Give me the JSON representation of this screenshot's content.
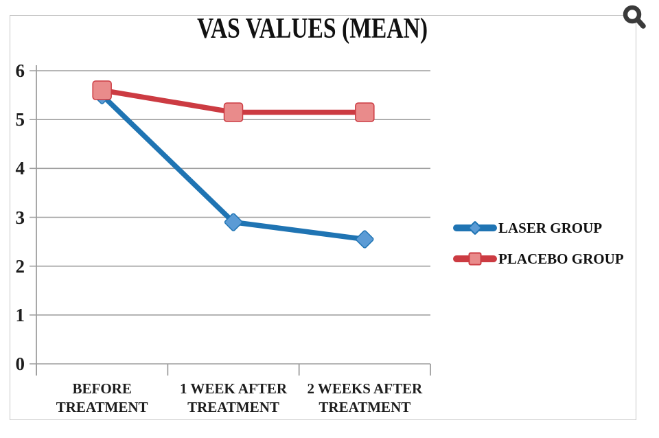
{
  "icons": {
    "zoom": "magnifier-icon"
  },
  "colors": {
    "grid": "#9e9e9e",
    "border": "#c6c6c6",
    "text": "#1d1d1d",
    "icon": "#3a3a3a"
  },
  "chart_data": {
    "type": "line",
    "title": "VAS VALUES (MEAN)",
    "categories": [
      "BEFORE TREATMENT",
      "1 WEEK AFTER TREATMENT",
      "2 WEEKS AFTER TREATMENT"
    ],
    "categories_lines": [
      [
        "BEFORE",
        "TREATMENT"
      ],
      [
        "1 WEEK AFTER",
        "TREATMENT"
      ],
      [
        "2 WEEKS AFTER",
        "TREATMENT"
      ]
    ],
    "series": [
      {
        "name": "LASER GROUP",
        "values": [
          5.5,
          2.9,
          2.55
        ],
        "color": "#1f74b3",
        "marker_fill": "#5b9bd5",
        "marker": "diamond"
      },
      {
        "name": "PLACEBO GROUP",
        "values": [
          5.6,
          5.15,
          5.15
        ],
        "color": "#cc3b42",
        "marker_fill": "#e98b8b",
        "marker": "square"
      }
    ],
    "xlabel": "",
    "ylabel": "",
    "ylim": [
      0,
      6
    ],
    "yticks": [
      0,
      1,
      2,
      3,
      4,
      5,
      6
    ],
    "grid": true,
    "legend_position": "right"
  }
}
